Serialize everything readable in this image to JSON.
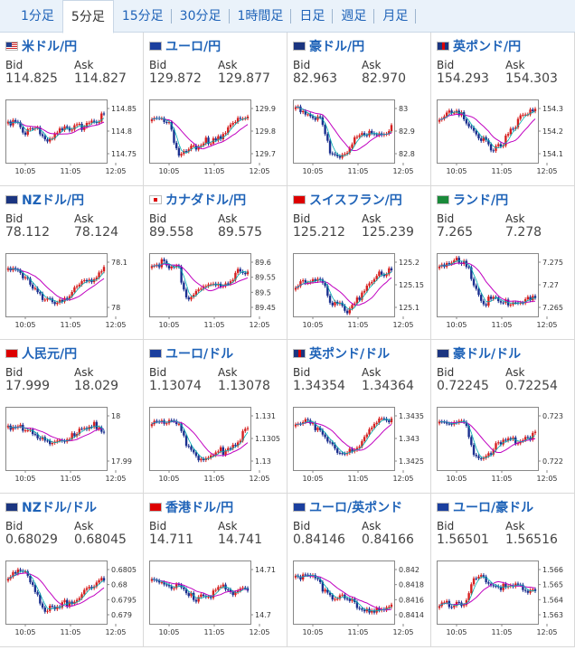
{
  "tabs": [
    "1分足",
    "5分足",
    "15分足",
    "30分足",
    "1時間足",
    "日足",
    "週足",
    "月足"
  ],
  "active_tab": 1,
  "labels": {
    "bid": "Bid",
    "ask": "Ask"
  },
  "colors": {
    "link": "#1f63b8",
    "up": "#d62020",
    "down": "#1a2f8f",
    "ma_magenta": "#c000c0",
    "ma_cyan": "#00b0b0"
  },
  "xticks": [
    "10:05",
    "11:05",
    "12:05"
  ],
  "pairs": [
    {
      "name": "米ドル/円",
      "flag": "us",
      "bid": "114.825",
      "ask": "114.827",
      "yticks": [
        "114.85",
        "114.8",
        "114.75"
      ],
      "shape": [
        0.35,
        0.3,
        0.55,
        0.45,
        0.6,
        0.58,
        0.4,
        0.55,
        0.45,
        0.35,
        0.3,
        0.25
      ]
    },
    {
      "name": "ユーロ/円",
      "flag": "eu",
      "bid": "129.872",
      "ask": "129.877",
      "yticks": [
        "129.9",
        "129.8",
        "129.7"
      ],
      "shape": [
        0.3,
        0.35,
        0.4,
        0.85,
        0.75,
        0.8,
        0.7,
        0.6,
        0.55,
        0.45,
        0.35,
        0.25
      ]
    },
    {
      "name": "豪ドル/円",
      "flag": "au",
      "bid": "82.963",
      "ask": "82.970",
      "yticks": [
        "83",
        "82.9",
        "82.8"
      ],
      "shape": [
        0.2,
        0.15,
        0.25,
        0.35,
        0.9,
        0.85,
        0.8,
        0.6,
        0.6,
        0.55,
        0.5,
        0.45
      ]
    },
    {
      "name": "英ポンド/円",
      "flag": "gb",
      "bid": "154.293",
      "ask": "154.303",
      "yticks": [
        "154.3",
        "154.2",
        "154.1"
      ],
      "shape": [
        0.3,
        0.2,
        0.25,
        0.3,
        0.5,
        0.65,
        0.85,
        0.75,
        0.45,
        0.35,
        0.25,
        0.2
      ]
    },
    {
      "name": "NZドル/円",
      "flag": "nz",
      "bid": "78.112",
      "ask": "78.124",
      "yticks": [
        "78.1",
        "78"
      ],
      "shape": [
        0.3,
        0.25,
        0.35,
        0.55,
        0.8,
        0.75,
        0.7,
        0.65,
        0.55,
        0.45,
        0.35,
        0.2
      ]
    },
    {
      "name": "カナダドル/円",
      "flag": "ca",
      "bid": "89.558",
      "ask": "89.575",
      "yticks": [
        "89.6",
        "89.55",
        "89.5",
        "89.45"
      ],
      "shape": [
        0.2,
        0.15,
        0.25,
        0.2,
        0.7,
        0.6,
        0.55,
        0.5,
        0.45,
        0.4,
        0.3,
        0.35
      ]
    },
    {
      "name": "スイスフラン/円",
      "flag": "ch",
      "bid": "125.212",
      "ask": "125.239",
      "yticks": [
        "125.2",
        "125.15",
        "125.1"
      ],
      "shape": [
        0.55,
        0.5,
        0.4,
        0.35,
        0.85,
        0.8,
        0.9,
        0.7,
        0.6,
        0.45,
        0.3,
        0.2
      ]
    },
    {
      "name": "ランド/円",
      "flag": "za",
      "bid": "7.265",
      "ask": "7.278",
      "yticks": [
        "7.275",
        "7.27",
        "7.265"
      ],
      "shape": [
        0.2,
        0.1,
        0.15,
        0.2,
        0.45,
        0.75,
        0.75,
        0.8,
        0.8,
        0.75,
        0.75,
        0.75
      ]
    },
    {
      "name": "人民元/円",
      "flag": "cn",
      "bid": "17.999",
      "ask": "18.029",
      "yticks": [
        "18",
        "17.99"
      ],
      "shape": [
        0.35,
        0.4,
        0.3,
        0.4,
        0.55,
        0.6,
        0.5,
        0.45,
        0.35,
        0.4,
        0.3,
        0.35
      ]
    },
    {
      "name": "ユーロ/ドル",
      "flag": "eu",
      "bid": "1.13074",
      "ask": "1.13078",
      "yticks": [
        "1.131",
        "1.1305",
        "1.13"
      ],
      "shape": [
        0.2,
        0.2,
        0.25,
        0.3,
        0.55,
        0.75,
        0.85,
        0.8,
        0.7,
        0.6,
        0.5,
        0.35
      ]
    },
    {
      "name": "英ポンド/ドル",
      "flag": "gb",
      "bid": "1.34354",
      "ask": "1.34364",
      "yticks": [
        "1.3435",
        "1.343",
        "1.3425"
      ],
      "shape": [
        0.3,
        0.25,
        0.3,
        0.35,
        0.55,
        0.8,
        0.75,
        0.6,
        0.45,
        0.3,
        0.2,
        0.15
      ]
    },
    {
      "name": "豪ドル/ドル",
      "flag": "au",
      "bid": "0.72245",
      "ask": "0.72254",
      "yticks": [
        "0.723",
        "0.722"
      ],
      "shape": [
        0.25,
        0.2,
        0.2,
        0.3,
        0.8,
        0.75,
        0.7,
        0.6,
        0.55,
        0.5,
        0.45,
        0.45
      ]
    },
    {
      "name": "NZドル/ドル",
      "flag": "nz",
      "bid": "0.68029",
      "ask": "0.68045",
      "yticks": [
        "0.6805",
        "0.68",
        "0.6795",
        "0.679"
      ],
      "shape": [
        0.25,
        0.2,
        0.25,
        0.4,
        0.75,
        0.8,
        0.75,
        0.65,
        0.55,
        0.5,
        0.4,
        0.3
      ]
    },
    {
      "name": "香港ドル/円",
      "flag": "hk",
      "bid": "14.711",
      "ask": "14.741",
      "yticks": [
        "14.71",
        "14.7"
      ],
      "shape": [
        0.35,
        0.3,
        0.4,
        0.45,
        0.55,
        0.6,
        0.5,
        0.55,
        0.45,
        0.5,
        0.45,
        0.4
      ]
    },
    {
      "name": "ユーロ/英ポンド",
      "flag": "eu",
      "bid": "0.84146",
      "ask": "0.84166",
      "yticks": [
        "0.842",
        "0.8418",
        "0.8416",
        "0.8414"
      ],
      "shape": [
        0.2,
        0.25,
        0.3,
        0.4,
        0.55,
        0.6,
        0.65,
        0.7,
        0.75,
        0.8,
        0.8,
        0.75
      ]
    },
    {
      "name": "ユーロ/豪ドル",
      "flag": "eu",
      "bid": "1.56501",
      "ask": "1.56516",
      "yticks": [
        "1.566",
        "1.565",
        "1.564",
        "1.563"
      ],
      "shape": [
        0.75,
        0.7,
        0.65,
        0.7,
        0.3,
        0.25,
        0.35,
        0.4,
        0.45,
        0.4,
        0.45,
        0.45
      ]
    }
  ]
}
